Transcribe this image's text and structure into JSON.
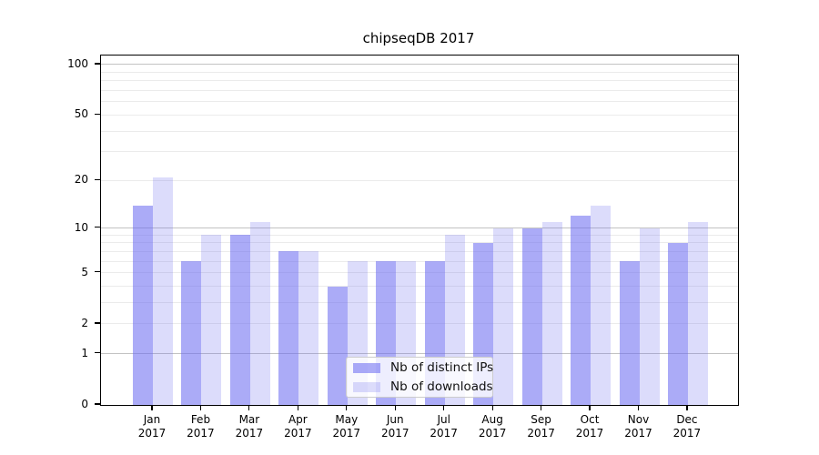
{
  "chart_data": {
    "type": "bar",
    "title": "chipseqDB 2017",
    "categories": [
      "Jan",
      "Feb",
      "Mar",
      "Apr",
      "May",
      "Jun",
      "Jul",
      "Aug",
      "Sep",
      "Oct",
      "Nov",
      "Dec"
    ],
    "category_year_label": "2017",
    "series": [
      {
        "name": "Nb of distinct IPs",
        "color": "rgba(105,105,240,0.56)",
        "values": [
          14,
          6,
          9,
          7,
          4,
          6,
          6,
          8,
          10,
          12,
          6,
          8
        ]
      },
      {
        "name": "Nb of downloads",
        "color": "rgba(105,105,240,0.235)",
        "values": [
          21,
          9,
          11,
          7,
          6,
          6,
          9,
          10,
          11,
          14,
          10,
          11
        ]
      }
    ],
    "y_axis": {
      "scale": "log1p",
      "ticks_labeled": [
        0,
        1,
        2,
        5,
        10,
        20,
        50,
        100
      ],
      "major_gridlines": [
        1,
        10,
        100
      ],
      "minor_gridlines": [
        2,
        3,
        4,
        5,
        6,
        7,
        8,
        9,
        20,
        30,
        40,
        50,
        60,
        70,
        80,
        90
      ],
      "ylim": [
        0,
        113
      ]
    },
    "xlabel": "",
    "ylabel": "",
    "grid": true,
    "legend_position": "lower-center-inside",
    "colors": {
      "bar_dark": "rgba(105,105,240,0.56)",
      "bar_light": "rgba(105,105,240,0.235)",
      "major_grid": "#c3c3c3",
      "minor_grid": "#ebebeb",
      "axis": "#000000",
      "text": "#000000",
      "legend_border": "#cccccc",
      "background": "#ffffff"
    }
  }
}
